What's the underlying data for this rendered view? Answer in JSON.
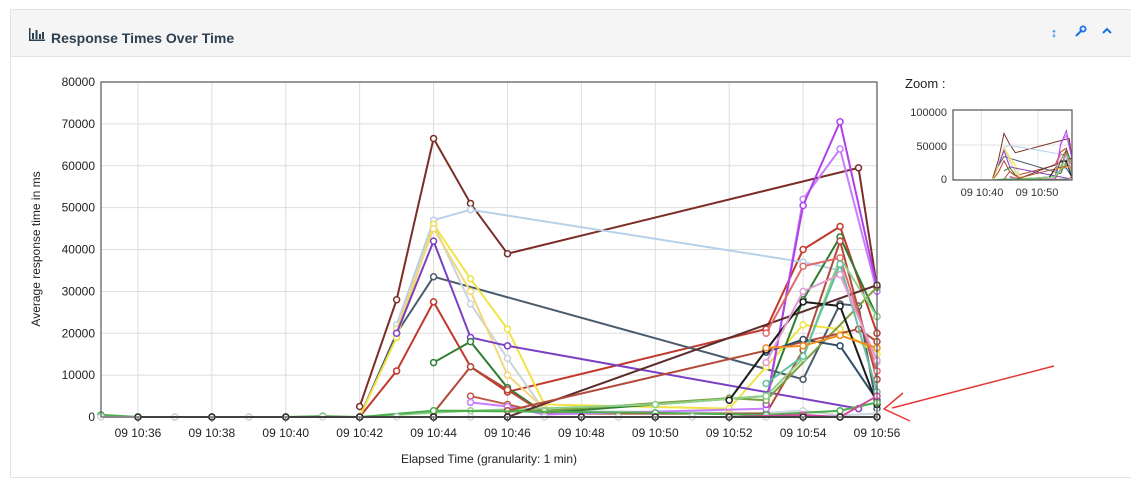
{
  "panel": {
    "title": "Response Times Over Time",
    "tools": [
      {
        "name": "expand-vertical-icon",
        "glyph": "↕"
      },
      {
        "name": "wrench-icon",
        "glyph": "🔧"
      },
      {
        "name": "chevron-up-icon",
        "glyph": "⌃"
      }
    ]
  },
  "zoom": {
    "label": "Zoom :",
    "yticks": [
      "100000",
      "50000",
      "0"
    ],
    "xticks": [
      "09 10:40",
      "09 10:50"
    ]
  },
  "chart_data": {
    "type": "line",
    "title": "",
    "xlabel": "Elapsed Time (granularity: 1 min)",
    "ylabel": "Average response time in ms",
    "ylim": [
      0,
      80000
    ],
    "yticks": [
      0,
      10000,
      20000,
      30000,
      40000,
      50000,
      60000,
      70000,
      80000
    ],
    "xticks": [
      "09 10:36",
      "09 10:38",
      "09 10:40",
      "09 10:42",
      "09 10:44",
      "09 10:46",
      "09 10:48",
      "09 10:50",
      "09 10:52",
      "09 10:54",
      "09 10:56"
    ],
    "xlim_minutes": [
      35,
      56
    ],
    "grid": true,
    "annotation": "red arrow pointing at the lines ending near 0 at 09 10:56",
    "series": [
      {
        "color": "#7b2d26",
        "points": [
          [
            42,
            2500
          ],
          [
            43,
            28000
          ],
          [
            44,
            66500
          ],
          [
            45,
            51000
          ],
          [
            46,
            39000
          ],
          [
            55.5,
            59500
          ],
          [
            56,
            31000
          ]
        ]
      },
      {
        "color": "#c0392b",
        "points": [
          [
            42,
            0
          ],
          [
            43,
            11000
          ],
          [
            44,
            27500
          ],
          [
            45,
            12000
          ],
          [
            46,
            6000
          ],
          [
            53,
            21000
          ],
          [
            54,
            40000
          ],
          [
            55,
            45500
          ],
          [
            56,
            20000
          ]
        ]
      },
      {
        "color": "#4a5b6b",
        "points": [
          [
            42,
            0
          ],
          [
            43,
            20000
          ],
          [
            44,
            33500
          ],
          [
            54,
            9000
          ],
          [
            55,
            27000
          ],
          [
            55.5,
            26500
          ],
          [
            56,
            2000
          ]
        ]
      },
      {
        "color": "#b7d1ea",
        "points": [
          [
            43,
            22000
          ],
          [
            44,
            47000
          ],
          [
            45,
            49500
          ],
          [
            54,
            37000
          ],
          [
            55,
            35000
          ],
          [
            56,
            13000
          ]
        ]
      },
      {
        "color": "#c8d5dc",
        "points": [
          [
            43,
            20000
          ],
          [
            44,
            46000
          ],
          [
            45,
            27000
          ],
          [
            46,
            14000
          ],
          [
            47,
            1500
          ],
          [
            52,
            1000
          ],
          [
            53,
            1000
          ],
          [
            54,
            1500
          ],
          [
            55,
            400
          ],
          [
            56,
            800
          ]
        ]
      },
      {
        "color": "#f0e443",
        "points": [
          [
            42,
            0
          ],
          [
            43,
            19000
          ],
          [
            44,
            46000
          ],
          [
            45,
            33000
          ],
          [
            46,
            21000
          ],
          [
            47,
            3000
          ],
          [
            52,
            2000
          ],
          [
            53,
            12000
          ],
          [
            54,
            22000
          ],
          [
            55,
            21000
          ],
          [
            56,
            15000
          ]
        ]
      },
      {
        "color": "#f5d67a",
        "points": [
          [
            43,
            21000
          ],
          [
            44,
            45000
          ],
          [
            45,
            30000
          ],
          [
            46,
            10000
          ],
          [
            47,
            2000
          ]
        ]
      },
      {
        "color": "#7b3fc4",
        "points": [
          [
            43,
            20000
          ],
          [
            44,
            42000
          ],
          [
            45,
            19000
          ],
          [
            46,
            17000
          ],
          [
            55.5,
            2000
          ]
        ]
      },
      {
        "color": "#2e7d32",
        "points": [
          [
            44,
            13000
          ],
          [
            45,
            18000
          ],
          [
            46,
            7000
          ],
          [
            47,
            1000
          ],
          [
            53,
            5000
          ],
          [
            54,
            28000
          ],
          [
            55,
            43000
          ],
          [
            56,
            24000
          ]
        ]
      },
      {
        "color": "#b24a3a",
        "points": [
          [
            44,
            1000
          ],
          [
            45,
            12000
          ],
          [
            46,
            6500
          ],
          [
            47,
            800
          ],
          [
            53,
            800
          ],
          [
            54,
            16000
          ],
          [
            55,
            42000
          ],
          [
            56,
            9000
          ]
        ]
      },
      {
        "color": "#c05a46",
        "points": [
          [
            45,
            5000
          ],
          [
            46,
            3000
          ],
          [
            47,
            1000
          ]
        ]
      },
      {
        "color": "#c77dff",
        "points": [
          [
            45,
            3500
          ],
          [
            46,
            2500
          ],
          [
            47,
            600
          ],
          [
            53,
            2000
          ],
          [
            54,
            52000
          ],
          [
            55,
            64000
          ],
          [
            56,
            30000
          ]
        ]
      },
      {
        "color": "#b041e8",
        "points": [
          [
            53,
            3000
          ],
          [
            54,
            50500
          ],
          [
            55,
            70500
          ],
          [
            56,
            31000
          ]
        ]
      },
      {
        "color": "#7a9f3e",
        "points": [
          [
            44,
            1500
          ],
          [
            47,
            1500
          ],
          [
            52,
            4500
          ],
          [
            53,
            4000
          ],
          [
            56,
            31000
          ]
        ]
      },
      {
        "color": "#8fd18a",
        "points": [
          [
            42,
            0
          ],
          [
            45,
            1500
          ],
          [
            50,
            3000
          ],
          [
            53,
            5000
          ],
          [
            54,
            14000
          ],
          [
            55,
            38000
          ],
          [
            56,
            24000
          ]
        ]
      },
      {
        "color": "#5c2c2c",
        "points": [
          [
            46,
            0
          ],
          [
            56,
            31500
          ]
        ]
      },
      {
        "color": "#b24a3a",
        "points": [
          [
            46,
            1500
          ],
          [
            55.5,
            21000
          ],
          [
            56,
            18000
          ]
        ]
      },
      {
        "color": "#e06b6b",
        "points": [
          [
            53,
            20000
          ],
          [
            54,
            36000
          ],
          [
            55,
            38000
          ],
          [
            56,
            11000
          ]
        ]
      },
      {
        "color": "#2e4d6b",
        "points": [
          [
            53,
            15500
          ],
          [
            54,
            18500
          ],
          [
            55,
            17000
          ],
          [
            56,
            4000
          ]
        ]
      },
      {
        "color": "#1b1b1b",
        "points": [
          [
            52,
            4000
          ],
          [
            53,
            16000
          ],
          [
            54,
            27500
          ],
          [
            55,
            26500
          ],
          [
            56,
            3000
          ]
        ]
      },
      {
        "color": "#63c1a0",
        "points": [
          [
            53,
            8000
          ],
          [
            54,
            14500
          ],
          [
            55,
            36500
          ],
          [
            56,
            6000
          ]
        ]
      },
      {
        "color": "#e29ad1",
        "points": [
          [
            53,
            13000
          ],
          [
            54,
            30000
          ],
          [
            55,
            34000
          ],
          [
            56,
            13500
          ]
        ]
      },
      {
        "color": "#f08c1f",
        "points": [
          [
            53,
            16500
          ],
          [
            54,
            17000
          ],
          [
            55,
            19500
          ],
          [
            56,
            16500
          ]
        ]
      },
      {
        "color": "#4cae4c",
        "points": [
          [
            35,
            500
          ],
          [
            36,
            0
          ],
          [
            37,
            0
          ],
          [
            38,
            0
          ],
          [
            39,
            0
          ],
          [
            40,
            0
          ],
          [
            41,
            200
          ],
          [
            42,
            0
          ],
          [
            44,
            1500
          ],
          [
            50,
            1000
          ],
          [
            53,
            500
          ],
          [
            55,
            1500
          ],
          [
            56,
            3500
          ]
        ]
      },
      {
        "color": "#cfd8dc",
        "points": [
          [
            35,
            0
          ],
          [
            36,
            0
          ],
          [
            37,
            0
          ],
          [
            38,
            0
          ],
          [
            39,
            0
          ],
          [
            40,
            0
          ],
          [
            41,
            0
          ],
          [
            42,
            0
          ],
          [
            43,
            0
          ],
          [
            44,
            0
          ],
          [
            45,
            0
          ],
          [
            46,
            0
          ],
          [
            47,
            0
          ],
          [
            48,
            0
          ],
          [
            49,
            0
          ],
          [
            50,
            0
          ],
          [
            51,
            0
          ],
          [
            52,
            0
          ],
          [
            53,
            0
          ],
          [
            54,
            0
          ],
          [
            55,
            0
          ],
          [
            56,
            0
          ]
        ]
      },
      {
        "color": "#d04b9e",
        "points": [
          [
            42,
            0
          ],
          [
            44,
            0
          ],
          [
            46,
            0
          ],
          [
            48,
            0
          ],
          [
            50,
            0
          ],
          [
            52,
            0
          ],
          [
            54,
            500
          ],
          [
            55,
            0
          ],
          [
            56,
            5000
          ]
        ]
      },
      {
        "color": "#222222",
        "points": [
          [
            36,
            0
          ],
          [
            38,
            0
          ],
          [
            40,
            0
          ],
          [
            42,
            0
          ],
          [
            44,
            0
          ],
          [
            46,
            0
          ],
          [
            48,
            0
          ],
          [
            50,
            0
          ],
          [
            52,
            0
          ],
          [
            54,
            0
          ],
          [
            55,
            0
          ],
          [
            56,
            0
          ]
        ]
      }
    ]
  }
}
